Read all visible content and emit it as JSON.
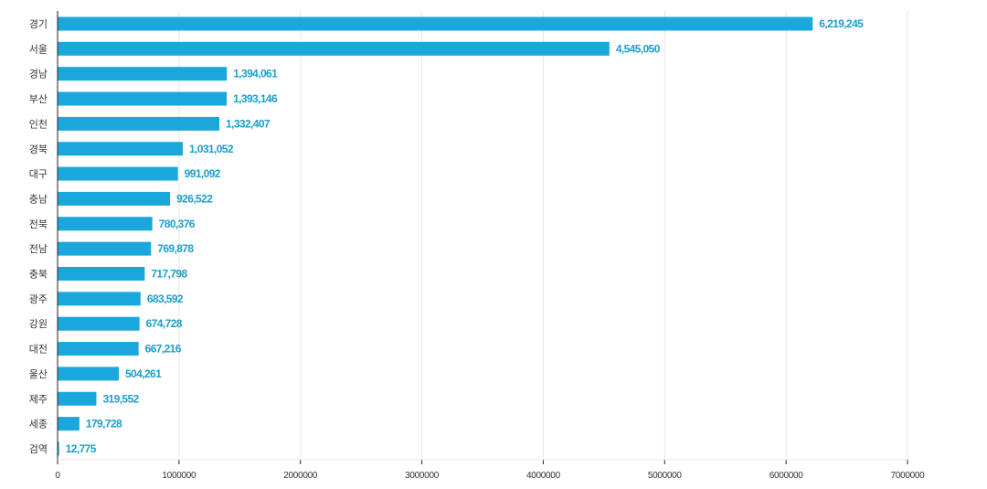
{
  "chart_data": {
    "type": "bar",
    "orientation": "horizontal",
    "title": "",
    "xlabel": "",
    "ylabel": "",
    "categories": [
      "경기",
      "서울",
      "경남",
      "부산",
      "인천",
      "경북",
      "대구",
      "충남",
      "전북",
      "전남",
      "충북",
      "광주",
      "강원",
      "대전",
      "울산",
      "제주",
      "세종",
      "검역"
    ],
    "values": [
      6219245,
      4545050,
      1394061,
      1393146,
      1332407,
      1031052,
      991092,
      926522,
      780376,
      769878,
      717798,
      683592,
      674728,
      667216,
      504261,
      319552,
      179728,
      12775
    ],
    "value_labels": [
      "6,219,245",
      "4,545,050",
      "1,394,061",
      "1,393,146",
      "1,332,407",
      "1,031,052",
      "991,092",
      "926,522",
      "780,376",
      "769,878",
      "717,798",
      "683,592",
      "674,728",
      "667,216",
      "504,261",
      "319,552",
      "179,728",
      "12,775"
    ],
    "x_ticks": [
      0,
      1000000,
      2000000,
      3000000,
      4000000,
      5000000,
      6000000,
      7000000
    ],
    "x_tick_labels": [
      "0",
      "1000000",
      "2000000",
      "3000000",
      "4000000",
      "5000000",
      "6000000",
      "7000000"
    ],
    "xlim": [
      0,
      7000000
    ],
    "grid": "vertical",
    "legend": "none",
    "bar_color": "#1aa8dc",
    "label_color": "#1a9fca"
  }
}
